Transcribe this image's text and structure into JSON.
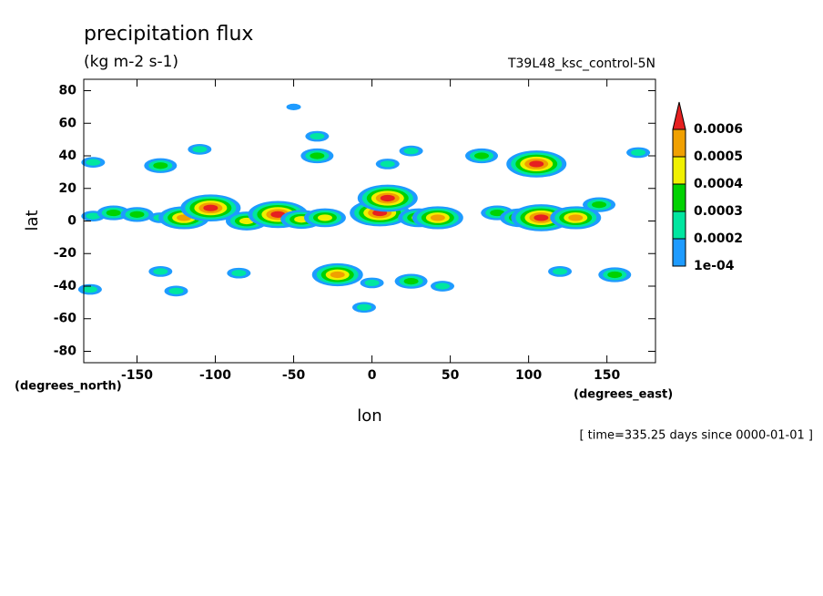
{
  "chart_data": {
    "type": "contour",
    "title": "precipitation flux",
    "subtitle": "(kg m-2 s-1)",
    "run_label": "T39L48_ksc_control-5N",
    "x_label": "lon",
    "y_label": "lat",
    "y_units": "(degrees_north)",
    "x_units": "(degrees_east)",
    "time_note": "[ time=335.25 days since 0000-01-01 ]",
    "xlim": [
      -184,
      181
    ],
    "ylim": [
      -87,
      87
    ],
    "xticks": [
      -150,
      -100,
      -50,
      0,
      50,
      100,
      150
    ],
    "yticks": [
      -80,
      -60,
      -40,
      -20,
      0,
      20,
      40,
      60,
      80
    ],
    "levels": [
      {
        "value": 0.0001,
        "label": "1e-04"
      },
      0.0002,
      0.0003,
      0.0004,
      0.0005,
      0.0006
    ],
    "colors": [
      "#1e9bff",
      "#00e6a0",
      "#00d200",
      "#f0f000",
      "#f0a000",
      "#e62020"
    ],
    "blobs": {
      "lon": [
        -178,
        -165,
        -150,
        -135,
        -120,
        -103,
        -80,
        -60,
        -45,
        -30,
        5,
        10,
        30,
        42,
        80,
        95,
        108,
        130,
        145,
        -178,
        -135,
        -35,
        -35,
        -50,
        25,
        10,
        70,
        105,
        170,
        -110,
        -135,
        -125,
        -85,
        -22,
        0,
        -5,
        25,
        45,
        120,
        155,
        -180
      ],
      "lat": [
        3,
        5,
        4,
        2,
        2,
        8,
        0,
        4,
        1,
        2,
        5,
        14,
        2,
        2,
        5,
        2,
        2,
        2,
        10,
        36,
        34,
        40,
        52,
        70,
        43,
        35,
        40,
        35,
        42,
        44,
        -31,
        -43,
        -32,
        -33,
        -38,
        -53,
        -37,
        -40,
        -31,
        -33,
        -42
      ],
      "values": [
        0.0002,
        0.0003,
        0.0003,
        0.0002,
        0.0005,
        0.0006,
        0.0004,
        0.0006,
        0.0004,
        0.0004,
        0.0006,
        0.0006,
        0.0004,
        0.0005,
        0.0003,
        0.0004,
        0.0006,
        0.0005,
        0.0003,
        0.0002,
        0.0003,
        0.0003,
        0.0002,
        0.0001,
        0.0002,
        0.0002,
        0.0003,
        0.0006,
        0.0002,
        0.0002,
        0.0002,
        0.0002,
        0.0002,
        0.0005,
        0.0002,
        0.0002,
        0.0003,
        0.0002,
        0.0002,
        0.0003,
        0.0002
      ]
    }
  }
}
